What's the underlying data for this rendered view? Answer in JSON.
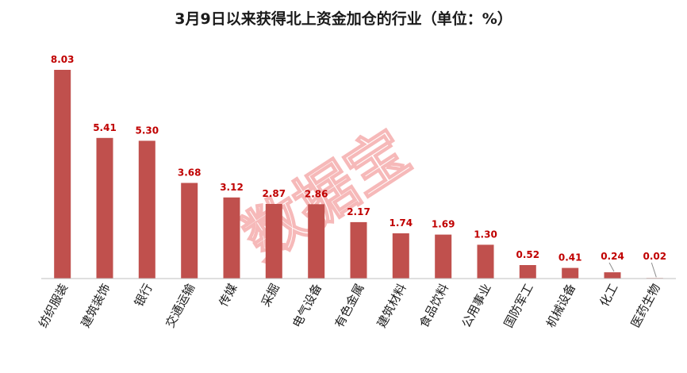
{
  "colors": {
    "bar": "#c0504d",
    "data_label": "#c00000",
    "axis": "#bfbfbf",
    "watermark": "#f08080"
  },
  "watermark": "数据宝",
  "chart_data": {
    "type": "bar",
    "title": "3月9日以来获得北上资金加仓的行业（单位：%）",
    "xlabel": "",
    "ylabel": "",
    "grid": false,
    "legend": "none",
    "ylim": [
      0,
      8.6
    ],
    "categories": [
      "纺织服装",
      "建筑装饰",
      "银行",
      "交通运输",
      "传媒",
      "采掘",
      "电气设备",
      "有色金属",
      "建筑材料",
      "食品饮料",
      "公用事业",
      "国防军工",
      "机械设备",
      "化工",
      "医药生物"
    ],
    "values": [
      8.03,
      5.41,
      5.3,
      3.68,
      3.12,
      2.87,
      2.86,
      2.17,
      1.74,
      1.69,
      1.3,
      0.52,
      0.41,
      0.24,
      0.02
    ],
    "data_labels": [
      "8.03",
      "5.41",
      "5.30",
      "3.68",
      "3.12",
      "2.87",
      "2.86",
      "2.17",
      "1.74",
      "1.69",
      "1.30",
      "0.52",
      "0.41",
      "0.24",
      "0.02"
    ]
  }
}
